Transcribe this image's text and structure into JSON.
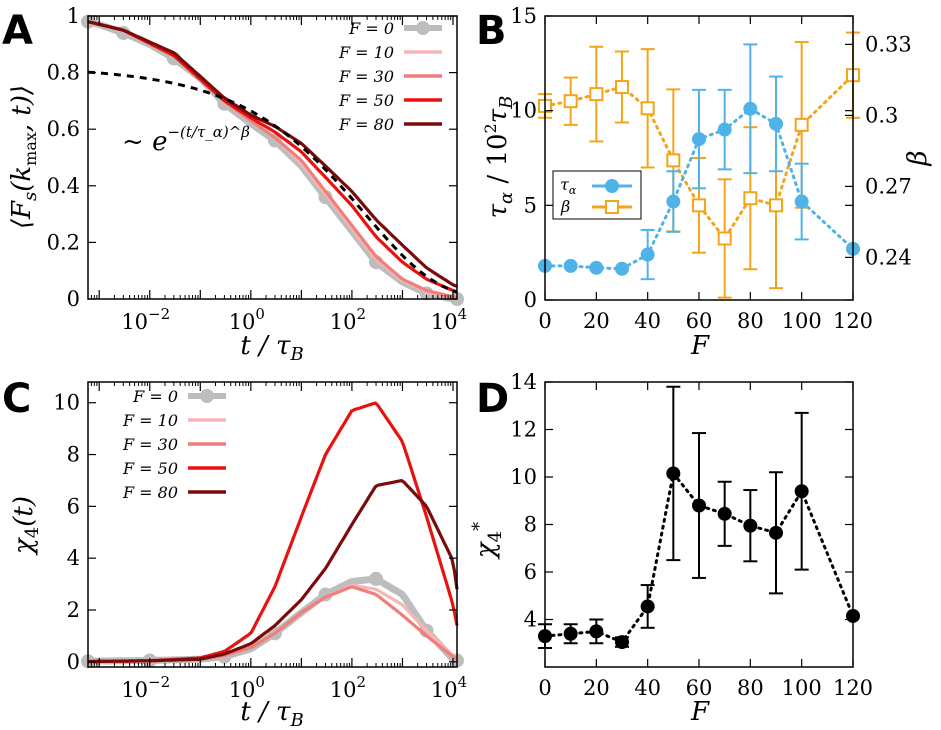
{
  "chart_data": [
    {
      "id": "A",
      "type": "line",
      "panel_label": "A",
      "xlabel": "t / τ_B",
      "ylabel": "⟨F_s(k_max, t)⟩",
      "xscale": "log",
      "xlim": [
        0.0006,
        12000
      ],
      "ylim": [
        0,
        1
      ],
      "xticks": [
        0.01,
        1,
        100,
        10000
      ],
      "xtick_labels": [
        [
          "10",
          "−2"
        ],
        [
          "10",
          "0"
        ],
        [
          "10",
          "2"
        ],
        [
          "10",
          "4"
        ]
      ],
      "yticks": [
        0,
        0.2,
        0.4,
        0.6,
        0.8,
        1
      ],
      "ytick_labels": [
        "0",
        "0.2",
        "0.4",
        "0.6",
        "0.8",
        "1"
      ],
      "legend_position": "top-right",
      "annotation": {
        "text": "~ e^{−(t/τ_α)^β}",
        "prefix": "~ ",
        "base": "e",
        "exponent": "−(t/τ_α)^β"
      },
      "fit_curve": {
        "name": "stretched exponential fit",
        "A": 0.82,
        "tau": 180,
        "beta": 0.3,
        "style": "dashed",
        "color": "#000000"
      },
      "series": [
        {
          "name": "F = 0",
          "label_main": "F = 0",
          "color": "#bdbdbd",
          "marker": "circle",
          "x": [
            0.0006,
            0.001,
            0.003,
            0.01,
            0.03,
            0.1,
            0.3,
            1,
            3,
            10,
            30,
            100,
            300,
            1000,
            3000,
            10000,
            12000
          ],
          "y": [
            0.98,
            0.97,
            0.94,
            0.9,
            0.85,
            0.78,
            0.69,
            0.62,
            0.56,
            0.47,
            0.36,
            0.24,
            0.13,
            0.06,
            0.02,
            0.0,
            0.0
          ]
        },
        {
          "name": "F = 10",
          "label_main": "F = 10",
          "color": "#f7b6b6",
          "x": [
            0.0006,
            0.003,
            0.03,
            0.3,
            1,
            3,
            10,
            30,
            100,
            300,
            1000,
            3000,
            10000,
            12000
          ],
          "y": [
            0.98,
            0.95,
            0.86,
            0.7,
            0.63,
            0.57,
            0.48,
            0.37,
            0.25,
            0.14,
            0.065,
            0.025,
            0.005,
            0.003
          ]
        },
        {
          "name": "F = 30",
          "label_main": "F = 30",
          "color": "#f07e7b",
          "x": [
            0.0006,
            0.003,
            0.03,
            0.3,
            1,
            3,
            10,
            30,
            100,
            300,
            1000,
            3000,
            10000,
            12000
          ],
          "y": [
            0.98,
            0.95,
            0.86,
            0.7,
            0.63,
            0.57,
            0.49,
            0.38,
            0.26,
            0.15,
            0.07,
            0.03,
            0.008,
            0.005
          ]
        },
        {
          "name": "F = 50",
          "label_main": "F = 50",
          "color": "#e8120f",
          "x": [
            0.0006,
            0.003,
            0.03,
            0.3,
            1,
            3,
            10,
            30,
            100,
            300,
            1000,
            3000,
            10000,
            12000
          ],
          "y": [
            0.98,
            0.95,
            0.86,
            0.7,
            0.64,
            0.59,
            0.52,
            0.43,
            0.33,
            0.22,
            0.13,
            0.07,
            0.03,
            0.025
          ]
        },
        {
          "name": "F = 80",
          "label_main": "F = 80",
          "color": "#7b0b0b",
          "x": [
            0.0006,
            0.003,
            0.03,
            0.3,
            1,
            3,
            10,
            30,
            100,
            300,
            1000,
            3000,
            10000,
            12000
          ],
          "y": [
            0.98,
            0.95,
            0.87,
            0.71,
            0.65,
            0.61,
            0.55,
            0.47,
            0.38,
            0.28,
            0.19,
            0.11,
            0.05,
            0.045
          ]
        }
      ]
    },
    {
      "id": "B",
      "type": "line",
      "panel_label": "B",
      "xlabel": "F",
      "ylabel": "τ_α / 10² τ_B",
      "ylabel_right": "β",
      "xlim": [
        0,
        120
      ],
      "ylim": [
        0,
        15
      ],
      "ylim_right": [
        0.222,
        0.342
      ],
      "xticks": [
        0,
        20,
        40,
        60,
        80,
        100,
        120
      ],
      "yticks": [
        0,
        5,
        10,
        15
      ],
      "yticks_right": [
        0.24,
        0.27,
        0.3,
        0.33
      ],
      "ytick_right_labels": [
        "0.24",
        "0.27",
        "0.3",
        "0.33"
      ],
      "legend_position": "center-left",
      "series": [
        {
          "name": "τ_α",
          "label_main": "τ",
          "label_sub": "α",
          "axis": "left",
          "color": "#4fb3e8",
          "marker": "circle",
          "style": "dotted",
          "x": [
            0,
            10,
            20,
            30,
            40,
            50,
            60,
            70,
            80,
            90,
            100,
            120
          ],
          "y": [
            1.8,
            1.8,
            1.7,
            1.65,
            2.4,
            5.2,
            8.5,
            9.0,
            10.1,
            9.3,
            5.2,
            2.7
          ],
          "err": [
            0,
            0,
            0,
            0,
            1.3,
            1.6,
            2.6,
            2.1,
            3.4,
            2.5,
            2.0,
            0
          ]
        },
        {
          "name": "β",
          "label_main": "β",
          "axis": "right",
          "color": "#f5a31a",
          "marker": "square",
          "style": "dotted",
          "x": [
            0,
            10,
            20,
            30,
            40,
            50,
            60,
            70,
            80,
            90,
            100,
            120
          ],
          "y": [
            0.304,
            0.306,
            0.309,
            0.312,
            0.303,
            0.281,
            0.262,
            0.248,
            0.265,
            0.262,
            0.296,
            0.317
          ],
          "err": [
            0.005,
            0.01,
            0.02,
            0.015,
            0.025,
            0.03,
            0.02,
            0.025,
            0.03,
            0.035,
            0.035,
            0.018
          ]
        }
      ]
    },
    {
      "id": "C",
      "type": "line",
      "panel_label": "C",
      "xlabel": "t / τ_B",
      "ylabel": "χ₄(t)",
      "xscale": "log",
      "xlim": [
        0.0006,
        12000
      ],
      "ylim": [
        -0.2,
        10.8
      ],
      "xticks": [
        0.01,
        1,
        100,
        10000
      ],
      "xtick_labels": [
        [
          "10",
          "−2"
        ],
        [
          "10",
          "0"
        ],
        [
          "10",
          "2"
        ],
        [
          "10",
          "4"
        ]
      ],
      "yticks": [
        0,
        2,
        4,
        6,
        8,
        10
      ],
      "ytick_labels": [
        "0",
        "2",
        "4",
        "6",
        "8",
        "10"
      ],
      "legend_position": "top-left",
      "series": [
        {
          "name": "F = 0",
          "label_main": "F = 0",
          "color": "#bdbdbd",
          "marker": "circle",
          "x": [
            0.0006,
            0.001,
            0.01,
            0.1,
            0.3,
            1,
            3,
            10,
            30,
            100,
            300,
            1000,
            3000,
            10000,
            12000
          ],
          "y": [
            0.02,
            0.03,
            0.05,
            0.1,
            0.2,
            0.5,
            1.1,
            1.9,
            2.6,
            3.1,
            3.2,
            2.6,
            1.2,
            0.1,
            0.05
          ]
        },
        {
          "name": "F = 10",
          "label_main": "F = 10",
          "color": "#f7b6b6",
          "x": [
            0.0006,
            0.01,
            0.1,
            0.3,
            1,
            3,
            10,
            30,
            100,
            300,
            1000,
            3000,
            10000,
            12000
          ],
          "y": [
            0.01,
            0.04,
            0.1,
            0.25,
            0.55,
            1.1,
            1.9,
            2.5,
            2.95,
            2.8,
            2.2,
            1.2,
            0.25,
            0.1
          ]
        },
        {
          "name": "F = 30",
          "label_main": "F = 30",
          "color": "#f07e7b",
          "x": [
            0.0006,
            0.01,
            0.1,
            0.3,
            1,
            3,
            10,
            30,
            100,
            300,
            1000,
            3000,
            10000,
            12000
          ],
          "y": [
            0.01,
            0.04,
            0.1,
            0.25,
            0.55,
            1.1,
            1.9,
            2.5,
            2.9,
            2.6,
            1.8,
            1.0,
            0.2,
            0.1
          ]
        },
        {
          "name": "F = 50",
          "label_main": "F = 50",
          "color": "#e8120f",
          "x": [
            0.0006,
            0.01,
            0.1,
            0.3,
            1,
            3,
            10,
            30,
            100,
            300,
            1000,
            3000,
            10000,
            12000
          ],
          "y": [
            0.01,
            0.04,
            0.15,
            0.4,
            1.1,
            2.9,
            5.6,
            8.0,
            9.7,
            10.0,
            8.5,
            5.6,
            2.2,
            1.4
          ]
        },
        {
          "name": "F = 80",
          "label_main": "F = 80",
          "color": "#7b0b0b",
          "x": [
            0.0006,
            0.01,
            0.1,
            0.3,
            1,
            3,
            10,
            30,
            100,
            300,
            1000,
            3000,
            10000,
            12000
          ],
          "y": [
            0.01,
            0.04,
            0.1,
            0.3,
            0.7,
            1.4,
            2.4,
            3.6,
            5.3,
            6.8,
            7.0,
            6.0,
            3.9,
            2.8
          ]
        }
      ]
    },
    {
      "id": "D",
      "type": "line",
      "panel_label": "D",
      "xlabel": "F",
      "ylabel": "χ₄*",
      "xlim": [
        0,
        120
      ],
      "ylim": [
        2,
        14
      ],
      "xticks": [
        0,
        20,
        40,
        60,
        80,
        100,
        120
      ],
      "yticks": [
        4,
        6,
        8,
        10,
        12,
        14
      ],
      "series": [
        {
          "name": "χ4*",
          "color": "#000000",
          "marker": "circle",
          "style": "dotted",
          "x": [
            0,
            10,
            20,
            30,
            40,
            50,
            60,
            70,
            80,
            90,
            100,
            120
          ],
          "y": [
            3.3,
            3.4,
            3.5,
            3.05,
            4.55,
            10.15,
            8.8,
            8.45,
            7.95,
            7.65,
            9.4,
            4.15
          ],
          "err": [
            0.5,
            0.4,
            0.5,
            0.2,
            0.9,
            3.65,
            3.05,
            1.35,
            1.5,
            2.55,
            3.3,
            0
          ]
        }
      ]
    }
  ]
}
